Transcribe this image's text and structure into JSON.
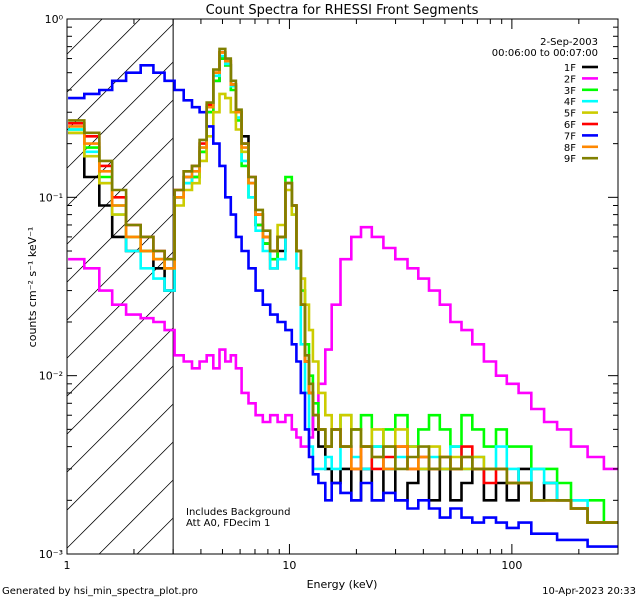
{
  "chart_data": {
    "type": "line",
    "title": "Count Spectra for RHESSI Front Segments",
    "xlabel": "Energy (keV)",
    "ylabel": "counts cm⁻² s⁻¹ keV⁻¹",
    "xscale": "log",
    "yscale": "log",
    "xlim": [
      1,
      300
    ],
    "ylim": [
      0.001,
      1
    ],
    "x_ticks": [
      {
        "value": 1,
        "label": "1"
      },
      {
        "value": 10,
        "label": "10"
      },
      {
        "value": 100,
        "label": "100"
      }
    ],
    "y_ticks": [
      {
        "value": 1,
        "label": "10⁰"
      },
      {
        "value": 0.1,
        "label": "10⁻¹"
      },
      {
        "value": 0.01,
        "label": "10⁻²"
      },
      {
        "value": 0.001,
        "label": "10⁻³"
      }
    ],
    "hatched_region": {
      "x_start": 1,
      "x_end": 3
    },
    "legend_position": "top-right",
    "date": "2-Sep-2003",
    "time_range": "00:06:00 to 00:07:00",
    "annotations": [
      "Includes Background",
      "Att A0, FDecim 1"
    ],
    "x": [
      1.1,
      1.3,
      1.5,
      1.7,
      2.0,
      2.3,
      2.6,
      2.9,
      3.2,
      3.5,
      3.8,
      4.1,
      4.4,
      4.7,
      5.0,
      5.3,
      5.6,
      5.9,
      6.3,
      6.8,
      7.3,
      7.9,
      8.5,
      9.2,
      10.0,
      10.5,
      11.0,
      11.5,
      12.0,
      12.5,
      13.0,
      14.0,
      15.0,
      16.0,
      18.0,
      20.0,
      22.0,
      25.0,
      28.0,
      32.0,
      36.0,
      40.0,
      45.0,
      50.0,
      56.0,
      63.0,
      70.0,
      80.0,
      90.0,
      100.0,
      115.0,
      130.0,
      150.0,
      170.0,
      200.0,
      240.0,
      280.0
    ],
    "series": [
      {
        "name": "1F",
        "color": "#000000",
        "values": [
          0.23,
          0.13,
          0.09,
          0.06,
          0.05,
          0.05,
          0.04,
          0.03,
          0.1,
          0.13,
          0.13,
          0.18,
          0.3,
          0.45,
          0.6,
          0.55,
          0.42,
          0.3,
          0.22,
          0.12,
          0.07,
          0.055,
          0.04,
          0.05,
          0.12,
          0.09,
          0.05,
          0.025,
          0.012,
          0.008,
          0.005,
          0.004,
          0.003,
          0.0025,
          0.003,
          0.002,
          0.003,
          0.002,
          0.003,
          0.002,
          0.0025,
          0.003,
          0.002,
          0.003,
          0.002,
          0.0025,
          0.003,
          0.002,
          0.0025,
          0.002,
          0.003,
          0.002,
          0.0025,
          0.002,
          0.0018,
          0.0015,
          0.0015
        ]
      },
      {
        "name": "2F",
        "color": "#ff00ff",
        "values": [
          0.045,
          0.04,
          0.03,
          0.025,
          0.022,
          0.021,
          0.02,
          0.018,
          0.013,
          0.012,
          0.011,
          0.012,
          0.013,
          0.011,
          0.014,
          0.012,
          0.013,
          0.011,
          0.008,
          0.007,
          0.006,
          0.0055,
          0.006,
          0.0055,
          0.006,
          0.005,
          0.0045,
          0.004,
          0.004,
          0.0045,
          0.006,
          0.009,
          0.014,
          0.025,
          0.045,
          0.06,
          0.068,
          0.06,
          0.052,
          0.045,
          0.04,
          0.035,
          0.03,
          0.025,
          0.02,
          0.018,
          0.015,
          0.012,
          0.01,
          0.009,
          0.008,
          0.0065,
          0.0055,
          0.005,
          0.004,
          0.0035,
          0.003
        ]
      },
      {
        "name": "3F",
        "color": "#00ff00",
        "values": [
          0.24,
          0.19,
          0.13,
          0.09,
          0.06,
          0.05,
          0.045,
          0.04,
          0.1,
          0.12,
          0.13,
          0.18,
          0.3,
          0.45,
          0.6,
          0.55,
          0.4,
          0.27,
          0.15,
          0.1,
          0.07,
          0.055,
          0.045,
          0.06,
          0.13,
          0.09,
          0.05,
          0.03,
          0.015,
          0.01,
          0.007,
          0.005,
          0.004,
          0.005,
          0.006,
          0.005,
          0.006,
          0.004,
          0.005,
          0.006,
          0.004,
          0.005,
          0.006,
          0.005,
          0.004,
          0.006,
          0.005,
          0.004,
          0.005,
          0.004,
          0.004,
          0.003,
          0.003,
          0.0025,
          0.002,
          0.002,
          0.0015
        ]
      },
      {
        "name": "4F",
        "color": "#00ffff",
        "values": [
          0.24,
          0.18,
          0.12,
          0.08,
          0.05,
          0.04,
          0.035,
          0.03,
          0.1,
          0.12,
          0.14,
          0.19,
          0.32,
          0.48,
          0.62,
          0.56,
          0.42,
          0.28,
          0.16,
          0.1,
          0.065,
          0.05,
          0.04,
          0.045,
          0.12,
          0.08,
          0.04,
          0.015,
          0.008,
          0.004,
          0.003,
          0.003,
          0.0035,
          0.003,
          0.004,
          0.0035,
          0.003,
          0.004,
          0.003,
          0.0035,
          0.004,
          0.003,
          0.0035,
          0.003,
          0.004,
          0.003,
          0.0035,
          0.003,
          0.004,
          0.003,
          0.0025,
          0.003,
          0.0025,
          0.002,
          0.002,
          0.0015,
          0.0015
        ]
      },
      {
        "name": "5F",
        "color": "#cccc00",
        "values": [
          0.23,
          0.17,
          0.12,
          0.08,
          0.06,
          0.05,
          0.045,
          0.04,
          0.09,
          0.11,
          0.12,
          0.16,
          0.22,
          0.3,
          0.38,
          0.36,
          0.3,
          0.24,
          0.18,
          0.12,
          0.08,
          0.06,
          0.05,
          0.07,
          0.11,
          0.08,
          0.05,
          0.035,
          0.025,
          0.018,
          0.012,
          0.008,
          0.006,
          0.005,
          0.006,
          0.005,
          0.004,
          0.005,
          0.004,
          0.005,
          0.004,
          0.003,
          0.004,
          0.003,
          0.0035,
          0.003,
          0.0035,
          0.003,
          0.003,
          0.0025,
          0.0025,
          0.002,
          0.002,
          0.002,
          0.0018,
          0.0015,
          0.0015
        ]
      },
      {
        "name": "6F",
        "color": "#ff0000",
        "values": [
          0.26,
          0.22,
          0.15,
          0.1,
          0.07,
          0.06,
          0.05,
          0.045,
          0.11,
          0.14,
          0.15,
          0.2,
          0.33,
          0.5,
          0.65,
          0.58,
          0.43,
          0.3,
          0.2,
          0.13,
          0.08,
          0.06,
          0.05,
          0.06,
          0.12,
          0.09,
          0.05,
          0.025,
          0.012,
          0.008,
          0.006,
          0.005,
          0.004,
          0.005,
          0.004,
          0.003,
          0.004,
          0.003,
          0.0035,
          0.004,
          0.003,
          0.0035,
          0.003,
          0.0035,
          0.003,
          0.004,
          0.003,
          0.0025,
          0.003,
          0.0025,
          0.0025,
          0.002,
          0.002,
          0.002,
          0.0018,
          0.0015,
          0.0015
        ]
      },
      {
        "name": "7F",
        "color": "#0000ff",
        "values": [
          0.36,
          0.38,
          0.4,
          0.45,
          0.5,
          0.55,
          0.5,
          0.45,
          0.4,
          0.35,
          0.32,
          0.3,
          0.25,
          0.2,
          0.15,
          0.1,
          0.08,
          0.06,
          0.05,
          0.04,
          0.03,
          0.025,
          0.022,
          0.02,
          0.018,
          0.015,
          0.012,
          0.008,
          0.005,
          0.0035,
          0.0028,
          0.0025,
          0.002,
          0.0025,
          0.0022,
          0.002,
          0.0025,
          0.002,
          0.0022,
          0.002,
          0.0018,
          0.002,
          0.0018,
          0.0016,
          0.0018,
          0.0016,
          0.0015,
          0.0016,
          0.0015,
          0.0014,
          0.0015,
          0.0013,
          0.0013,
          0.0012,
          0.0012,
          0.0011,
          0.0011
        ]
      },
      {
        "name": "8F",
        "color": "#ff8800",
        "values": [
          0.25,
          0.2,
          0.14,
          0.09,
          0.06,
          0.05,
          0.045,
          0.04,
          0.1,
          0.13,
          0.14,
          0.19,
          0.32,
          0.5,
          0.65,
          0.58,
          0.43,
          0.3,
          0.19,
          0.12,
          0.08,
          0.06,
          0.05,
          0.06,
          0.12,
          0.09,
          0.05,
          0.025,
          0.012,
          0.008,
          0.006,
          0.005,
          0.004,
          0.005,
          0.004,
          0.003,
          0.004,
          0.0035,
          0.003,
          0.004,
          0.003,
          0.0035,
          0.003,
          0.0035,
          0.003,
          0.0035,
          0.003,
          0.003,
          0.003,
          0.0025,
          0.0025,
          0.002,
          0.002,
          0.002,
          0.0018,
          0.0015,
          0.0015
        ]
      },
      {
        "name": "9F",
        "color": "#808000",
        "values": [
          0.27,
          0.23,
          0.16,
          0.11,
          0.07,
          0.06,
          0.05,
          0.045,
          0.11,
          0.14,
          0.15,
          0.21,
          0.34,
          0.52,
          0.68,
          0.6,
          0.45,
          0.31,
          0.2,
          0.13,
          0.085,
          0.065,
          0.05,
          0.06,
          0.12,
          0.09,
          0.05,
          0.025,
          0.013,
          0.009,
          0.006,
          0.005,
          0.004,
          0.005,
          0.004,
          0.005,
          0.004,
          0.0035,
          0.004,
          0.003,
          0.0035,
          0.004,
          0.003,
          0.0035,
          0.003,
          0.0035,
          0.003,
          0.003,
          0.003,
          0.0025,
          0.0025,
          0.002,
          0.002,
          0.002,
          0.0018,
          0.0015,
          0.0015
        ]
      }
    ]
  },
  "footer": {
    "generated_by": "Generated by hsi_min_spectra_plot.pro",
    "timestamp": "10-Apr-2023 20:33"
  }
}
